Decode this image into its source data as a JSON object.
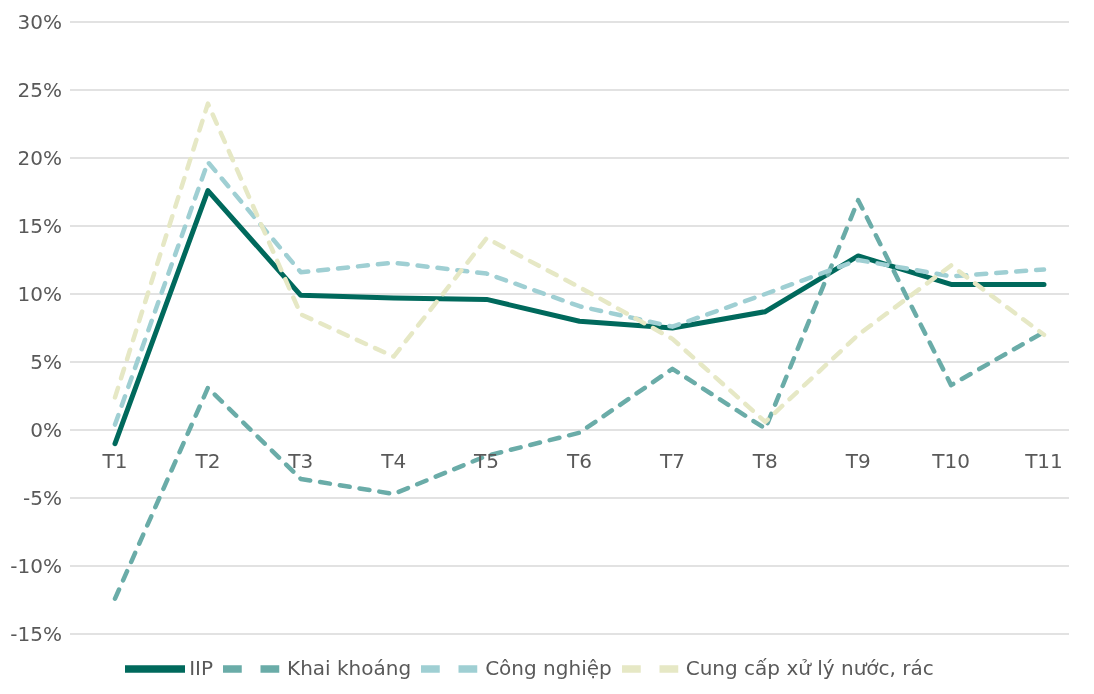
{
  "chart_data": {
    "type": "line",
    "categories": [
      "T1",
      "T2",
      "T3",
      "T4",
      "T5",
      "T6",
      "T7",
      "T8",
      "T9",
      "T10",
      "T11"
    ],
    "series": [
      {
        "name": "IIP",
        "color": "#00695c",
        "line_style": "solid",
        "values": [
          -1.0,
          17.6,
          9.9,
          9.7,
          9.6,
          8.0,
          7.5,
          8.7,
          12.8,
          10.7,
          10.7
        ]
      },
      {
        "name": "Khai khoáng",
        "color": "#6aaca8",
        "line_style": "dashed",
        "values": [
          -12.4,
          3.1,
          -3.6,
          -4.7,
          -1.9,
          -0.2,
          4.5,
          0.1,
          16.9,
          3.3,
          7.2
        ]
      },
      {
        "name": "Công nghiệp",
        "color": "#9fcfd3",
        "line_style": "dashed",
        "values": [
          0.4,
          19.7,
          11.6,
          12.3,
          11.5,
          9.1,
          7.6,
          10.0,
          12.5,
          11.3,
          11.8
        ]
      },
      {
        "name": "Cung cấp xử lý nước, rác",
        "color": "#e6e8c5",
        "line_style": "dashed",
        "values": [
          2.4,
          24.0,
          8.5,
          5.4,
          14.1,
          10.5,
          6.7,
          0.6,
          7.0,
          12.1,
          7.0
        ]
      }
    ],
    "ylim": [
      -15,
      30
    ],
    "yticks": [
      {
        "value": -15,
        "label": "-15%"
      },
      {
        "value": -10,
        "label": "-10%"
      },
      {
        "value": -5,
        "label": "-5%"
      },
      {
        "value": 0,
        "label": "0%"
      },
      {
        "value": 5,
        "label": "5%"
      },
      {
        "value": 10,
        "label": "10%"
      },
      {
        "value": 15,
        "label": "15%"
      },
      {
        "value": 20,
        "label": "20%"
      },
      {
        "value": 25,
        "label": "25%"
      },
      {
        "value": 30,
        "label": "30%"
      }
    ],
    "grid": "y",
    "legend": "bottom",
    "marker": "none"
  }
}
